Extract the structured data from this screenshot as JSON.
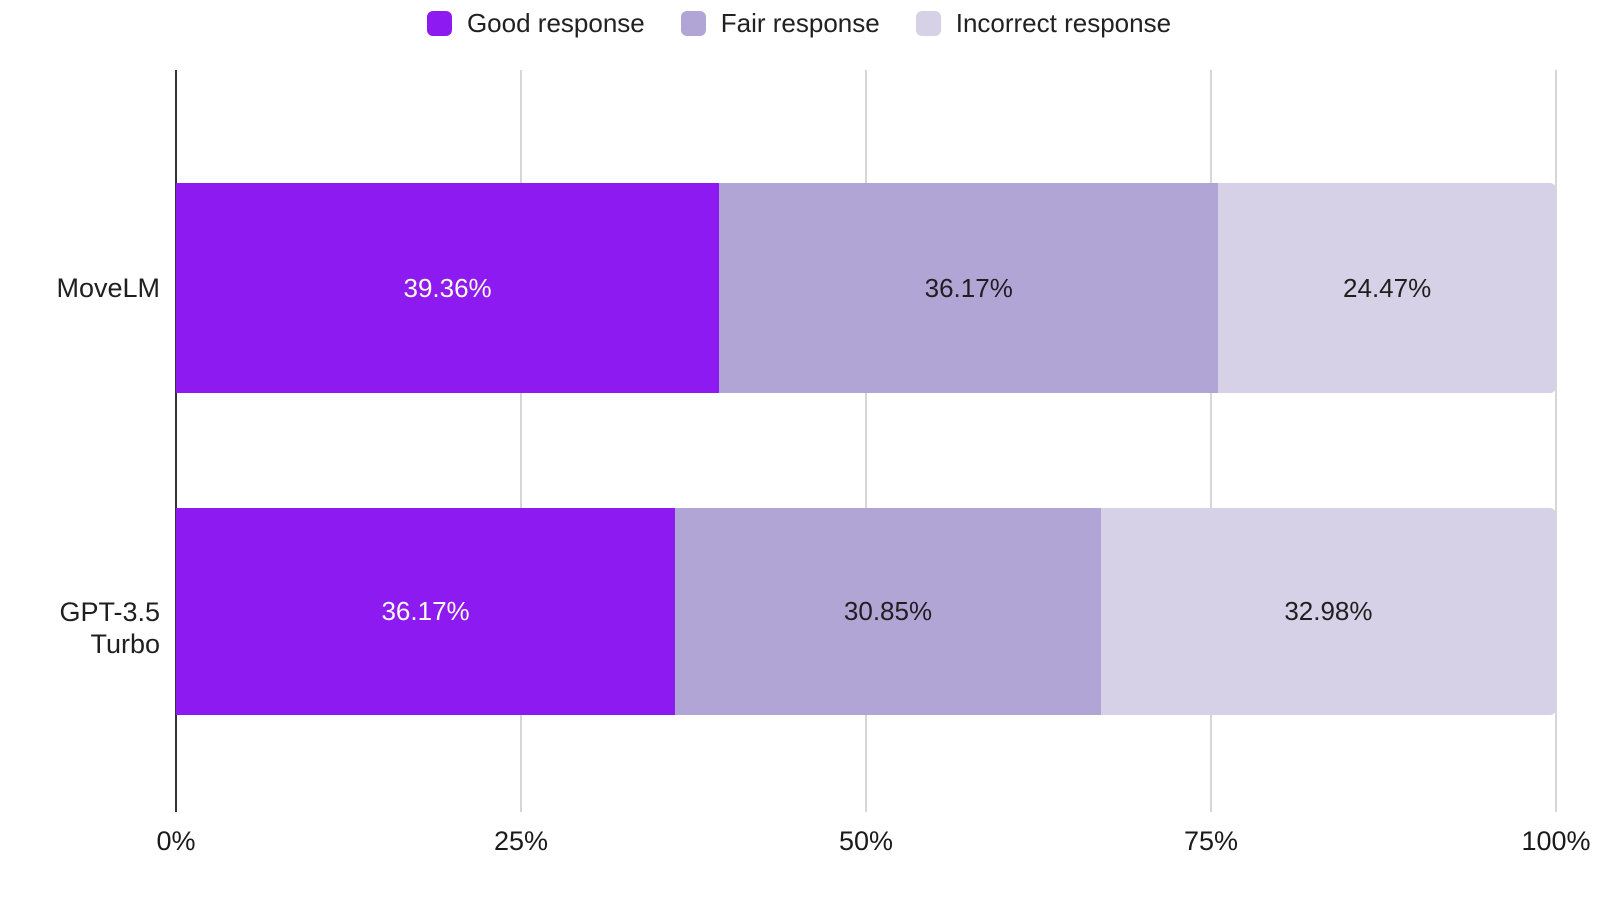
{
  "chart_data": {
    "type": "bar",
    "orientation": "horizontal",
    "stacked": true,
    "title": "",
    "categories": [
      "MoveLM",
      "GPT-3.5 Turbo"
    ],
    "series": [
      {
        "name": "Good response",
        "color": "#8d1af1",
        "label_color": "#fbfae8",
        "values": [
          39.36,
          36.17
        ],
        "labels": [
          "39.36%",
          "36.17%"
        ]
      },
      {
        "name": "Fair response",
        "color": "#b1a5d6",
        "label_color": "#1f1f1f",
        "values": [
          36.17,
          30.85
        ],
        "labels": [
          "36.17%",
          "30.85%"
        ]
      },
      {
        "name": "Incorrect response",
        "color": "#d6d1e7",
        "label_color": "#1f1f1f",
        "values": [
          24.47,
          32.98
        ],
        "labels": [
          "24.47%",
          "32.98%"
        ]
      }
    ],
    "x_ticks": [
      {
        "value": 0,
        "label": "0%"
      },
      {
        "value": 25,
        "label": "25%"
      },
      {
        "value": 50,
        "label": "50%"
      },
      {
        "value": 75,
        "label": "75%"
      },
      {
        "value": 100,
        "label": "100%"
      }
    ],
    "xlim": [
      0,
      100
    ],
    "grid": true,
    "legend_position": "top",
    "style": {
      "axis_line_color": "#333333",
      "gridline_color": "#d6d6d6",
      "background": "#ffffff"
    }
  }
}
